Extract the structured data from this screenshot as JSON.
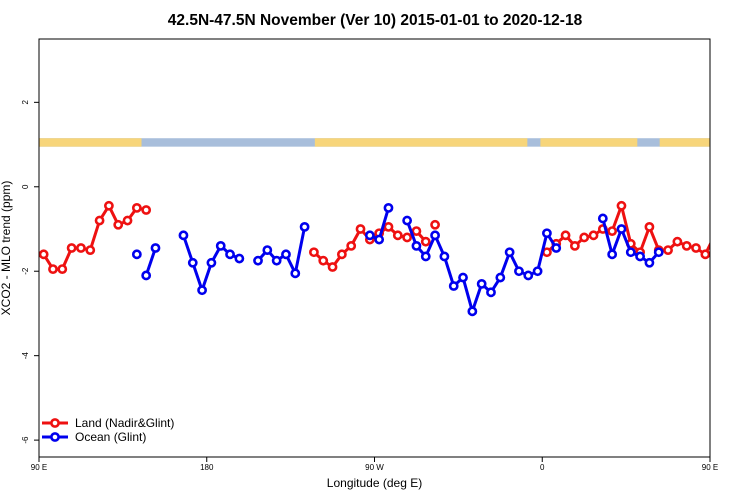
{
  "chart_data": {
    "type": "line",
    "title": "42.5N-47.5N November (Ver 10)   2015-01-01 to 2020-12-18",
    "xlabel": "Longitude (deg E)",
    "ylabel": "XCO2 - MLO trend (ppm)",
    "xlim": [
      90,
      450
    ],
    "ylim": [
      -6.4,
      3.5
    ],
    "x_ticks": [
      {
        "value": 90,
        "label": "90 E"
      },
      {
        "value": 180,
        "label": "180"
      },
      {
        "value": 270,
        "label": "90 W"
      },
      {
        "value": 360,
        "label": "0"
      },
      {
        "value": 450,
        "label": "90 E"
      },
      {
        "value": 540,
        "label": "180"
      }
    ],
    "y_ticks": [
      {
        "value": -6,
        "label": "-6"
      },
      {
        "value": -4,
        "label": "-4"
      },
      {
        "value": -2,
        "label": "-2"
      },
      {
        "value": 0,
        "label": "0"
      },
      {
        "value": 2,
        "label": "2"
      }
    ],
    "land_sea_band": {
      "y_range": [
        0.95,
        1.15
      ],
      "land_color": "#f7d57a",
      "ocean_color": "#a8bedb",
      "land_spans": [
        [
          90,
          145
        ],
        [
          238,
          352
        ],
        [
          359,
          411
        ],
        [
          423,
          455
        ]
      ]
    },
    "series": [
      {
        "name": "Land (Nadir&Glint)",
        "color": "#ee1111",
        "points": [
          [
            [
              92.5,
              -1.6
            ],
            [
              97.5,
              -1.95
            ],
            [
              102.5,
              -1.95
            ],
            [
              107.5,
              -1.45
            ],
            [
              112.5,
              -1.45
            ],
            [
              117.5,
              -1.5
            ],
            [
              122.5,
              -0.8
            ],
            [
              127.5,
              -0.45
            ],
            [
              132.5,
              -0.9
            ],
            [
              137.5,
              -0.8
            ],
            [
              142.5,
              -0.5
            ],
            [
              147.5,
              -0.55
            ]
          ],
          [
            [
              237.5,
              -1.55
            ],
            [
              242.5,
              -1.75
            ],
            [
              247.5,
              -1.9
            ],
            [
              252.5,
              -1.6
            ],
            [
              257.5,
              -1.4
            ],
            [
              262.5,
              -1.0
            ],
            [
              267.5,
              -1.25
            ],
            [
              272.5,
              -1.1
            ],
            [
              277.5,
              -0.95
            ],
            [
              282.5,
              -1.15
            ],
            [
              287.5,
              -1.2
            ],
            [
              292.5,
              -1.05
            ],
            [
              297.5,
              -1.3
            ]
          ],
          [
            [
              302.5,
              -0.9
            ]
          ],
          [
            [
              362.5,
              -1.55
            ],
            [
              367.5,
              -1.35
            ],
            [
              372.5,
              -1.15
            ],
            [
              377.5,
              -1.4
            ],
            [
              382.5,
              -1.2
            ],
            [
              387.5,
              -1.15
            ],
            [
              392.5,
              -1.0
            ],
            [
              397.5,
              -1.05
            ],
            [
              402.5,
              -0.45
            ],
            [
              407.5,
              -1.35
            ],
            [
              412.5,
              -1.55
            ],
            [
              417.5,
              -0.95
            ],
            [
              422.5,
              -1.5
            ],
            [
              427.5,
              -1.5
            ],
            [
              432.5,
              -1.3
            ],
            [
              437.5,
              -1.4
            ],
            [
              442.5,
              -1.45
            ],
            [
              447.5,
              -1.6
            ],
            [
              452.5,
              -1.15
            ],
            [
              457.5,
              -1.6
            ],
            [
              462.5,
              -1.95
            ],
            [
              467.5,
              -1.95
            ],
            [
              472.5,
              -1.45
            ],
            [
              477.5,
              -1.4
            ],
            [
              482.5,
              -1.5
            ],
            [
              487.5,
              -0.8
            ],
            [
              492.5,
              -0.45
            ],
            [
              497.5,
              -0.9
            ],
            [
              502.5,
              -0.8
            ],
            [
              507.5,
              -0.5
            ],
            [
              512.5,
              -0.55
            ]
          ]
        ]
      },
      {
        "name": "Ocean (Glint)",
        "color": "#0000ee",
        "points": [
          [
            [
              142.5,
              -1.6
            ]
          ],
          [
            [
              147.5,
              -2.1
            ],
            [
              152.5,
              -1.45
            ]
          ],
          [
            [
              167.5,
              -1.15
            ],
            [
              172.5,
              -1.8
            ],
            [
              177.5,
              -2.45
            ],
            [
              182.5,
              -1.8
            ],
            [
              187.5,
              -1.4
            ],
            [
              192.5,
              -1.6
            ],
            [
              197.5,
              -1.7
            ]
          ],
          [
            [
              207.5,
              -1.75
            ],
            [
              212.5,
              -1.5
            ],
            [
              217.5,
              -1.75
            ],
            [
              222.5,
              -1.6
            ],
            [
              227.5,
              -2.05
            ],
            [
              232.5,
              -0.95
            ]
          ],
          [
            [
              267.5,
              -1.15
            ],
            [
              272.5,
              -1.25
            ],
            [
              277.5,
              -0.5
            ]
          ],
          [
            [
              287.5,
              -0.8
            ],
            [
              292.5,
              -1.4
            ],
            [
              297.5,
              -1.65
            ],
            [
              302.5,
              -1.15
            ],
            [
              307.5,
              -1.65
            ],
            [
              312.5,
              -2.35
            ],
            [
              317.5,
              -2.15
            ],
            [
              322.5,
              -2.95
            ],
            [
              327.5,
              -2.3
            ],
            [
              332.5,
              -2.5
            ],
            [
              337.5,
              -2.15
            ],
            [
              342.5,
              -1.55
            ],
            [
              347.5,
              -2.0
            ],
            [
              352.5,
              -2.1
            ],
            [
              357.5,
              -2.0
            ],
            [
              362.5,
              -1.1
            ],
            [
              367.5,
              -1.45
            ]
          ],
          [
            [
              392.5,
              -0.75
            ],
            [
              397.5,
              -1.6
            ],
            [
              402.5,
              -1.0
            ],
            [
              407.5,
              -1.55
            ],
            [
              412.5,
              -1.65
            ],
            [
              417.5,
              -1.8
            ],
            [
              422.5,
              -1.55
            ]
          ],
          [
            [
              507.5,
              -1.6
            ]
          ],
          [
            [
              512.5,
              -2.1
            ],
            [
              517.5,
              -1.45
            ]
          ],
          [
            [
              532.5,
              -1.15
            ],
            [
              537.5,
              -1.8
            ],
            [
              542.5,
              -2.45
            ]
          ]
        ]
      }
    ],
    "legend": {
      "position": "bottom-left",
      "entries": [
        {
          "label": "Land (Nadir&Glint)",
          "color": "#ee1111"
        },
        {
          "label": "Ocean (Glint)",
          "color": "#0000ee"
        }
      ]
    },
    "grid": false
  }
}
